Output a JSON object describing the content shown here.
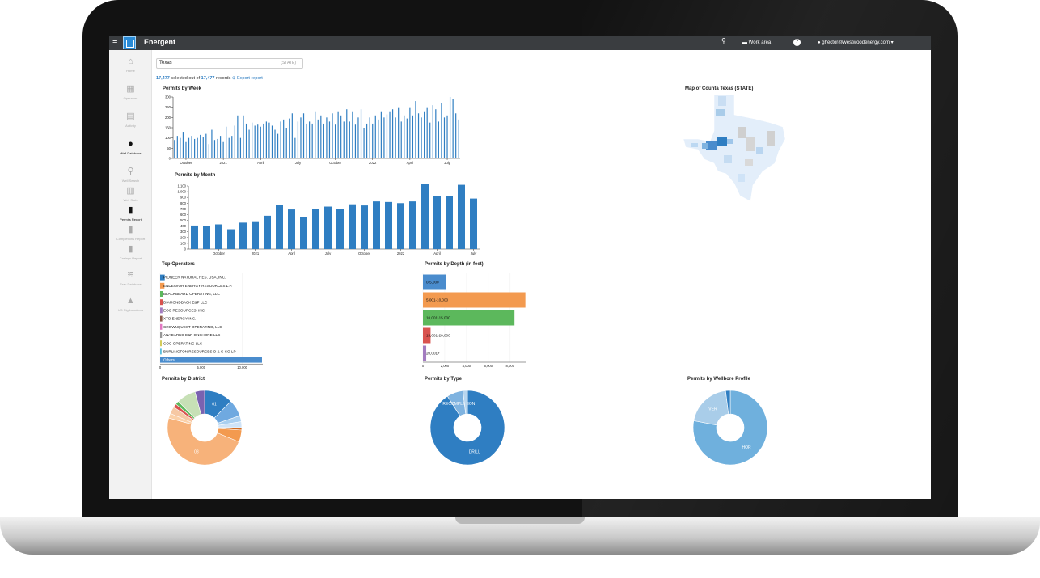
{
  "app": {
    "title": "Energent"
  },
  "topbar": {
    "work_area": "Work area",
    "user": "ghector@westwoodenergy.com ▾"
  },
  "sidebar": {
    "items": [
      {
        "label": "Home",
        "icon": "home-icon",
        "glyph": "⌂",
        "active": false
      },
      {
        "label": "Operators",
        "icon": "building-icon",
        "glyph": "▦",
        "active": false
      },
      {
        "label": "Activity",
        "icon": "calendar-icon",
        "glyph": "▤",
        "active": false
      },
      {
        "label": "Well Database",
        "icon": "drop-icon",
        "glyph": "●",
        "active": true
      },
      {
        "label": "Well Search",
        "icon": "search-icon",
        "glyph": "⚲",
        "active": false
      },
      {
        "label": "Well Stats",
        "icon": "table-icon",
        "glyph": "▥",
        "active": false
      },
      {
        "label": "Permits Report",
        "icon": "bar-chart-icon",
        "glyph": "▮",
        "active": true
      },
      {
        "label": "Completions Report",
        "icon": "bar-chart-icon",
        "glyph": "▮",
        "active": false
      },
      {
        "label": "Casings Report",
        "icon": "bar-chart-icon",
        "glyph": "▮",
        "active": false
      },
      {
        "label": "Frac Database",
        "icon": "wind-icon",
        "glyph": "≋",
        "active": false
      },
      {
        "label": "US Rig Locations",
        "icon": "rig-icon",
        "glyph": "▲",
        "active": false
      }
    ]
  },
  "search": {
    "value": "Texas",
    "tag": "(STATE)"
  },
  "selection": {
    "selected": "17,477",
    "middle": "selected out of",
    "total": "17,477",
    "suffix": "records",
    "export": "⊕ Export report"
  },
  "map": {
    "title": "Map of Counta Texas (STATE)"
  },
  "colors": {
    "blue": "#2f7ec2",
    "orange": "#f39a4f",
    "green": "#5cb85c",
    "red": "#d9534f",
    "purple": "#a37cc0",
    "topbar": "#3a3d40"
  },
  "chart_data": [
    {
      "id": "week",
      "type": "bar",
      "title": "Permits by Week",
      "ylim": [
        0,
        300
      ],
      "yticks": [
        0,
        50,
        100,
        150,
        200,
        250,
        300
      ],
      "xticks": [
        {
          "label": "October",
          "i": 4
        },
        {
          "label": "2021",
          "i": 17
        },
        {
          "label": "April",
          "i": 30
        },
        {
          "label": "July",
          "i": 43
        },
        {
          "label": "October",
          "i": 56
        },
        {
          "label": "2022",
          "i": 69
        },
        {
          "label": "April",
          "i": 82
        },
        {
          "label": "July",
          "i": 95
        }
      ],
      "values": [
        90,
        110,
        100,
        130,
        80,
        100,
        110,
        95,
        100,
        115,
        105,
        120,
        70,
        140,
        90,
        95,
        110,
        80,
        155,
        100,
        110,
        160,
        210,
        100,
        210,
        170,
        140,
        175,
        160,
        165,
        155,
        170,
        180,
        175,
        160,
        140,
        120,
        180,
        190,
        150,
        195,
        220,
        100,
        180,
        200,
        220,
        170,
        180,
        170,
        230,
        190,
        210,
        170,
        200,
        180,
        220,
        165,
        230,
        210,
        180,
        240,
        180,
        230,
        165,
        200,
        240,
        150,
        170,
        200,
        170,
        210,
        190,
        230,
        200,
        215,
        230,
        240,
        200,
        250,
        180,
        210,
        195,
        250,
        210,
        280,
        220,
        200,
        230,
        250,
        175,
        260,
        240,
        180,
        270,
        200,
        210,
        300,
        290,
        220,
        190
      ]
    },
    {
      "id": "month",
      "type": "bar",
      "title": "Permits by Month",
      "ylim": [
        0,
        1100
      ],
      "yticks": [
        0,
        100,
        200,
        300,
        400,
        500,
        600,
        700,
        800,
        900,
        1000,
        1100
      ],
      "ytick_labels": [
        "0",
        "100",
        "200",
        "300",
        "400",
        "500",
        "600",
        "700",
        "800",
        "900",
        "1,000",
        "1,100"
      ],
      "xticks": [
        {
          "label": "October",
          "i": 2
        },
        {
          "label": "2021",
          "i": 5
        },
        {
          "label": "April",
          "i": 8
        },
        {
          "label": "July",
          "i": 11
        },
        {
          "label": "October",
          "i": 14
        },
        {
          "label": "2022",
          "i": 17
        },
        {
          "label": "April",
          "i": 20
        },
        {
          "label": "July",
          "i": 23
        }
      ],
      "values": [
        410,
        405,
        430,
        345,
        460,
        470,
        580,
        770,
        690,
        560,
        700,
        740,
        700,
        780,
        760,
        830,
        820,
        800,
        830,
        1130,
        920,
        930,
        1120,
        880
      ]
    },
    {
      "id": "operators",
      "type": "bar",
      "orientation": "horizontal",
      "title": "Top Operators",
      "xlim": [
        0,
        12500
      ],
      "xticks": [
        0,
        5000,
        10000
      ],
      "xtick_labels": [
        "0",
        "5,000",
        "10,000"
      ],
      "categories": [
        "PIONEER NATURAL RES. USA, INC.",
        "ENDEAVOR ENERGY RESOURCES L.P.",
        "BLACKBEARD OPERATING, LLC",
        "DIAMONDBACK E&P LLC",
        "EOG RESOURCES, INC.",
        "XTO ENERGY INC.",
        "CROWNQUEST OPERATING, LLC",
        "ANARKO E&P ONSHORE LLC",
        "COG OPERATING LLC",
        "BURLINGTON RESOURCES O & G CO LP",
        "Others"
      ],
      "display_categories": [
        "PIONEER NATURAL RES. USA, INC.",
        "ENDEAVOR ENERGY RESOURCES L.P.",
        "BLACKBEARD OPERATING, LLC",
        "DIAMONDBACK E&P LLC",
        "EOG RESOURCES, INC.",
        "XTO ENERGY INC.",
        "CROWNQUEST OPERATING, LLC",
        "ANADARKO E&P ONSHORE LLC",
        "COG OPERATING LLC",
        "BURLINGTON RESOURCES O & G CO LP",
        "Others"
      ],
      "values": [
        560,
        520,
        360,
        300,
        280,
        260,
        240,
        220,
        200,
        180,
        12400
      ],
      "bar_colors": [
        "#2f7ec2",
        "#f39a4f",
        "#5cb85c",
        "#d9534f",
        "#a37cc0",
        "#8c5a4a",
        "#e377c2",
        "#999999",
        "#d4cc5a",
        "#5bc0de",
        "#4a8ccd"
      ]
    },
    {
      "id": "depth",
      "type": "bar",
      "orientation": "horizontal",
      "title": "Permits by Depth (in feet)",
      "xlim": [
        0,
        9500
      ],
      "xticks": [
        0,
        2000,
        4000,
        6000,
        8000
      ],
      "xtick_labels": [
        "0",
        "2,000",
        "4,000",
        "6,000",
        "8,000"
      ],
      "categories": [
        "0-5,000",
        "5,001-10,000",
        "10,001-15,000",
        "15,001-20,000",
        "20,001+"
      ],
      "values": [
        2100,
        9400,
        8400,
        700,
        300
      ],
      "bar_colors": [
        "#4a8ccd",
        "#f39a4f",
        "#5cb85c",
        "#d9534f",
        "#a37cc0"
      ]
    },
    {
      "id": "district",
      "type": "pie",
      "title": "Permits by District",
      "labels": [
        "01",
        "",
        "",
        "",
        "",
        "",
        "08",
        "",
        "",
        "",
        "",
        "",
        ""
      ],
      "values": [
        12,
        7,
        2.5,
        2.5,
        1,
        5,
        46,
        2,
        3,
        1.5,
        1.5,
        8,
        4
      ],
      "colors": [
        "#2f7ec2",
        "#6fa9e0",
        "#a9cff0",
        "#cfe3f7",
        "#d2691e",
        "#f39a4f",
        "#f7b27a",
        "#fbd0a8",
        "#f6c8a4",
        "#d9534f",
        "#5cb85c",
        "#c7e0b6",
        "#7a62b0"
      ]
    },
    {
      "id": "type",
      "type": "pie",
      "title": "Permits by Type",
      "labels": [
        "DRILL",
        "RECOMPLETION",
        ""
      ],
      "values": [
        91,
        7,
        2
      ],
      "colors": [
        "#2f7ec2",
        "#7fb3e0",
        "#b8d6ef"
      ]
    },
    {
      "id": "wellbore",
      "type": "pie",
      "title": "Permits by Wellbore Profile",
      "labels": [
        "HOR",
        "VER",
        ""
      ],
      "values": [
        78,
        20,
        2
      ],
      "colors": [
        "#6fb0dd",
        "#a9cde9",
        "#2f7ec2"
      ]
    }
  ]
}
